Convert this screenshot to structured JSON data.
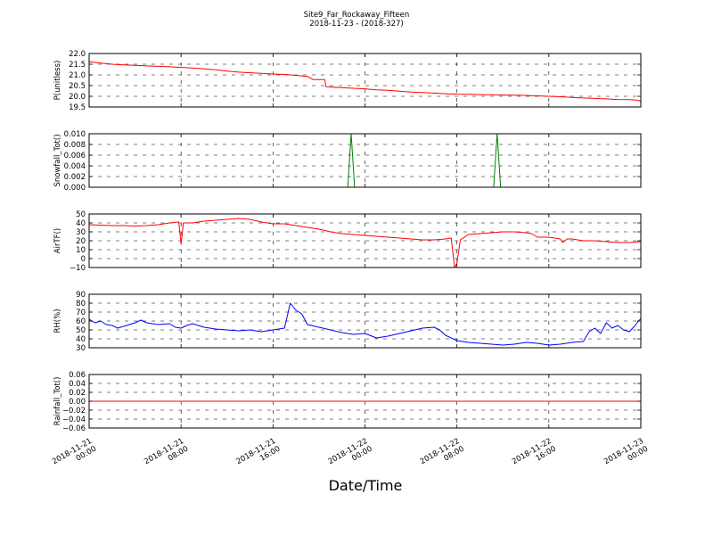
{
  "title_line1": "Site9_Far_Rockaway_Fifteen",
  "title_line2": "2018-11-23 - (2018-327)",
  "xlabel": "Date/Time",
  "x_ticks": [
    {
      "t": 0,
      "line1": "2018-11-21",
      "line2": "00:00"
    },
    {
      "t": 8,
      "line1": "2018-11-21",
      "line2": "08:00"
    },
    {
      "t": 16,
      "line1": "2018-11-21",
      "line2": "16:00"
    },
    {
      "t": 24,
      "line1": "2018-11-22",
      "line2": "00:00"
    },
    {
      "t": 32,
      "line1": "2018-11-22",
      "line2": "08:00"
    },
    {
      "t": 40,
      "line1": "2018-11-22",
      "line2": "16:00"
    },
    {
      "t": 48,
      "line1": "2018-11-23",
      "line2": "00:00"
    }
  ],
  "chart_data": [
    {
      "type": "line",
      "ylabel": "P(unitless)",
      "ylim": [
        19.5,
        22.0
      ],
      "yticks": [
        "19.5",
        "20.0",
        "20.5",
        "21.0",
        "21.5",
        "22.0"
      ],
      "ytick_values": [
        19.5,
        20.0,
        20.5,
        21.0,
        21.5,
        22.0
      ],
      "color": "#ff0000",
      "grid": true,
      "points": [
        [
          0,
          21.62
        ],
        [
          1,
          21.55
        ],
        [
          2,
          21.5
        ],
        [
          3,
          21.47
        ],
        [
          4,
          21.45
        ],
        [
          5,
          21.42
        ],
        [
          6,
          21.4
        ],
        [
          7,
          21.38
        ],
        [
          8,
          21.35
        ],
        [
          9,
          21.32
        ],
        [
          10,
          21.28
        ],
        [
          11,
          21.24
        ],
        [
          12,
          21.18
        ],
        [
          13,
          21.13
        ],
        [
          14,
          21.1
        ],
        [
          15,
          21.07
        ],
        [
          16,
          21.04
        ],
        [
          17,
          21.02
        ],
        [
          18,
          20.98
        ],
        [
          19,
          20.93
        ],
        [
          19.5,
          20.78
        ],
        [
          20.5,
          20.78
        ],
        [
          20.6,
          20.45
        ],
        [
          22,
          20.4
        ],
        [
          24,
          20.35
        ],
        [
          25,
          20.3
        ],
        [
          26,
          20.28
        ],
        [
          27,
          20.24
        ],
        [
          28,
          20.2
        ],
        [
          29,
          20.18
        ],
        [
          30,
          20.15
        ],
        [
          31,
          20.12
        ],
        [
          32,
          20.1
        ],
        [
          33,
          20.09
        ],
        [
          34,
          20.08
        ],
        [
          35,
          20.07
        ],
        [
          36,
          20.06
        ],
        [
          37,
          20.05
        ],
        [
          38,
          20.04
        ],
        [
          39,
          20.02
        ],
        [
          40,
          20.0
        ],
        [
          41,
          19.98
        ],
        [
          42,
          19.95
        ],
        [
          43,
          19.92
        ],
        [
          44,
          19.9
        ],
        [
          45,
          19.88
        ],
        [
          46,
          19.85
        ],
        [
          47,
          19.84
        ],
        [
          47.6,
          19.82
        ],
        [
          48,
          19.78
        ]
      ]
    },
    {
      "type": "line",
      "ylabel": "Snowfall_Tot()",
      "ylim": [
        0.0,
        0.01
      ],
      "yticks": [
        "0.000",
        "0.002",
        "0.004",
        "0.006",
        "0.008",
        "0.010"
      ],
      "ytick_values": [
        0.0,
        0.002,
        0.004,
        0.006,
        0.008,
        0.01
      ],
      "color": "#007f00",
      "grid": true,
      "points": [
        [
          0,
          0
        ],
        [
          22.5,
          0
        ],
        [
          22.8,
          0.01
        ],
        [
          23.1,
          0
        ],
        [
          35.2,
          0
        ],
        [
          35.5,
          0.01
        ],
        [
          35.8,
          0
        ],
        [
          48,
          0
        ]
      ]
    },
    {
      "type": "line",
      "ylabel": "AirTF()",
      "ylim": [
        -10,
        50
      ],
      "yticks": [
        "−10",
        "0",
        "10",
        "20",
        "30",
        "40",
        "50"
      ],
      "ytick_values": [
        -10,
        0,
        10,
        20,
        30,
        40,
        50
      ],
      "color": "#ff0000",
      "grid": true,
      "points": [
        [
          0,
          38
        ],
        [
          1,
          37.5
        ],
        [
          2,
          37
        ],
        [
          3,
          37
        ],
        [
          4,
          36.5
        ],
        [
          5,
          37
        ],
        [
          6,
          38
        ],
        [
          7,
          40
        ],
        [
          7.8,
          41
        ],
        [
          8,
          16
        ],
        [
          8.2,
          40
        ],
        [
          9,
          40
        ],
        [
          10,
          42
        ],
        [
          11,
          43
        ],
        [
          12,
          44
        ],
        [
          13,
          45
        ],
        [
          14,
          44
        ],
        [
          15,
          41
        ],
        [
          16,
          39
        ],
        [
          17,
          39
        ],
        [
          18,
          37
        ],
        [
          19,
          35
        ],
        [
          20,
          33
        ],
        [
          21,
          30
        ],
        [
          22,
          28
        ],
        [
          23,
          27
        ],
        [
          24,
          26
        ],
        [
          25,
          25
        ],
        [
          26,
          24
        ],
        [
          27,
          23
        ],
        [
          28,
          22
        ],
        [
          29,
          21
        ],
        [
          30,
          21
        ],
        [
          31,
          22
        ],
        [
          31.5,
          23
        ],
        [
          31.8,
          -10
        ],
        [
          32,
          -5
        ],
        [
          32.3,
          21
        ],
        [
          33,
          27
        ],
        [
          34,
          28
        ],
        [
          35,
          29
        ],
        [
          36,
          30
        ],
        [
          37,
          30
        ],
        [
          38,
          29
        ],
        [
          38.5,
          28
        ],
        [
          39,
          24
        ],
        [
          40,
          24
        ],
        [
          41,
          22
        ],
        [
          41.2,
          18
        ],
        [
          41.6,
          22
        ],
        [
          42,
          22
        ],
        [
          43,
          20
        ],
        [
          44,
          20
        ],
        [
          45,
          19
        ],
        [
          46,
          18
        ],
        [
          47,
          18
        ],
        [
          48,
          19
        ]
      ]
    },
    {
      "type": "line",
      "ylabel": "RH(%)",
      "ylim": [
        30,
        90
      ],
      "yticks": [
        "30",
        "40",
        "50",
        "60",
        "70",
        "80",
        "90"
      ],
      "ytick_values": [
        30,
        40,
        50,
        60,
        70,
        80,
        90
      ],
      "color": "#0000ff",
      "grid": true,
      "points": [
        [
          0,
          62
        ],
        [
          0.5,
          58
        ],
        [
          1,
          60
        ],
        [
          1.5,
          56
        ],
        [
          2,
          55
        ],
        [
          2.5,
          52
        ],
        [
          3,
          54
        ],
        [
          3.5,
          56
        ],
        [
          4,
          58
        ],
        [
          4.5,
          61
        ],
        [
          5,
          58
        ],
        [
          6,
          56
        ],
        [
          7,
          57
        ],
        [
          7.5,
          53
        ],
        [
          8,
          52
        ],
        [
          8.5,
          55
        ],
        [
          9,
          57
        ],
        [
          10,
          53
        ],
        [
          11,
          51
        ],
        [
          12,
          50
        ],
        [
          13,
          49
        ],
        [
          14,
          50
        ],
        [
          15,
          48
        ],
        [
          16,
          50
        ],
        [
          17,
          52
        ],
        [
          17.5,
          80
        ],
        [
          18,
          72
        ],
        [
          18.5,
          68
        ],
        [
          19,
          56
        ],
        [
          20,
          53
        ],
        [
          21,
          50
        ],
        [
          22,
          47
        ],
        [
          23,
          45
        ],
        [
          24,
          46
        ],
        [
          25,
          41
        ],
        [
          26,
          43
        ],
        [
          27,
          46
        ],
        [
          28,
          49
        ],
        [
          29,
          52
        ],
        [
          30,
          53
        ],
        [
          30.5,
          50
        ],
        [
          31,
          44
        ],
        [
          32,
          38
        ],
        [
          33,
          36
        ],
        [
          34,
          35
        ],
        [
          35,
          34
        ],
        [
          36,
          33
        ],
        [
          37,
          34
        ],
        [
          38,
          36
        ],
        [
          39,
          35
        ],
        [
          40,
          33
        ],
        [
          41,
          34
        ],
        [
          42,
          36
        ],
        [
          43,
          37
        ],
        [
          43.5,
          48
        ],
        [
          44,
          52
        ],
        [
          44.5,
          46
        ],
        [
          45,
          58
        ],
        [
          45.5,
          52
        ],
        [
          46,
          55
        ],
        [
          46.5,
          50
        ],
        [
          47,
          48
        ],
        [
          47.5,
          55
        ],
        [
          48,
          63
        ]
      ]
    },
    {
      "type": "line",
      "ylabel": "Rainfall_Tot()",
      "ylim": [
        -0.06,
        0.06
      ],
      "yticks": [
        "−0.06",
        "−0.04",
        "−0.02",
        "0.00",
        "0.02",
        "0.04",
        "0.06"
      ],
      "ytick_values": [
        -0.06,
        -0.04,
        -0.02,
        0.0,
        0.02,
        0.04,
        0.06
      ],
      "color": "#ff0000",
      "grid": true,
      "points": [
        [
          0,
          0
        ],
        [
          48,
          0
        ]
      ]
    }
  ]
}
